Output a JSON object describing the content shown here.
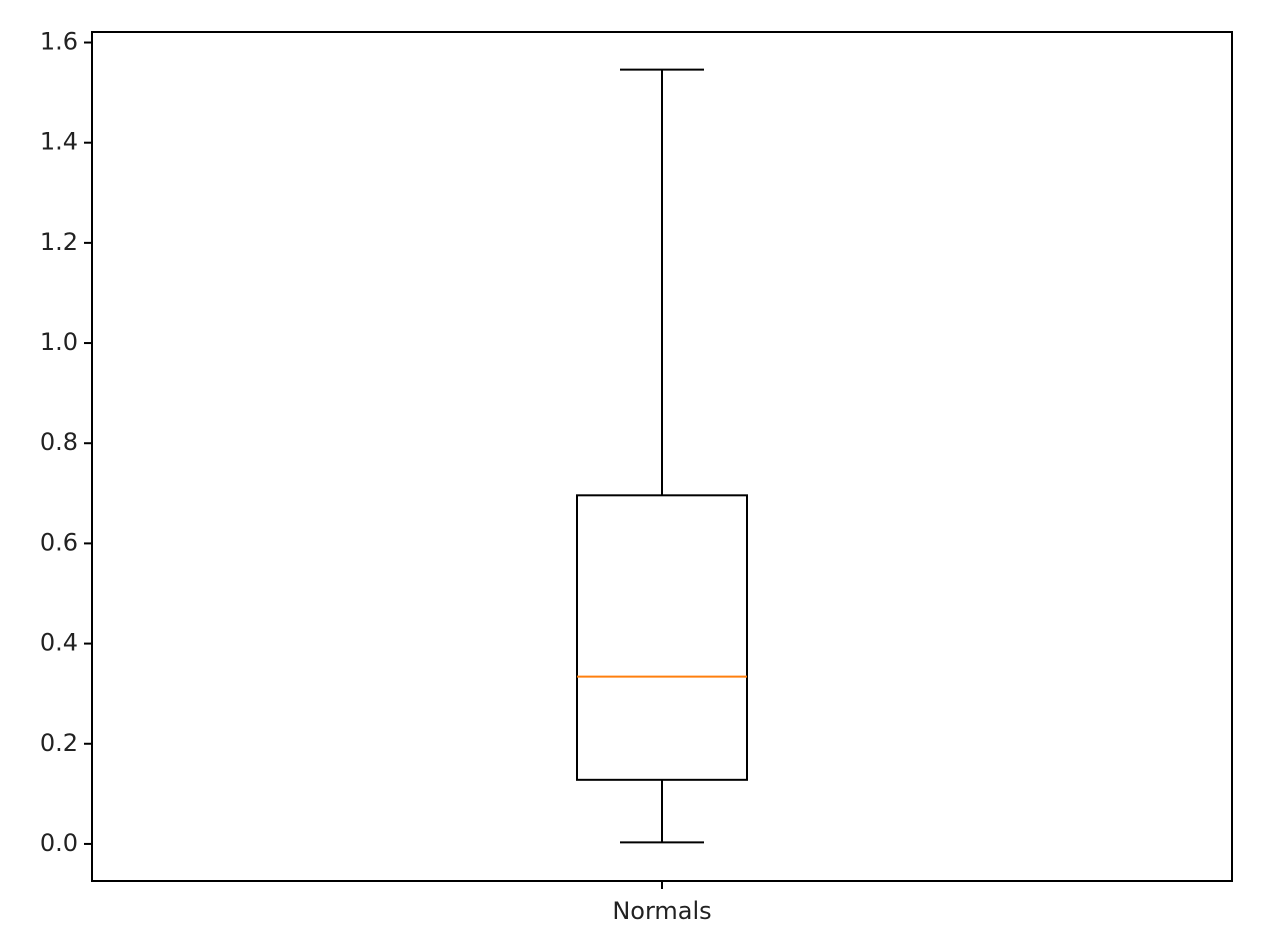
{
  "chart_data": {
    "type": "box",
    "title": "",
    "xlabel": "",
    "ylabel": "",
    "categories": [
      "Normals"
    ],
    "boxes": [
      {
        "label": "Normals",
        "whisker_low": 0.003,
        "q1": 0.128,
        "median": 0.334,
        "q3": 0.696,
        "whisker_high": 1.546
      }
    ],
    "ylim": [
      -0.074,
      1.621
    ],
    "yticks": [
      0.0,
      0.2,
      0.4,
      0.6,
      0.8,
      1.0,
      1.2,
      1.4,
      1.6
    ],
    "ytick_labels": [
      "0.0",
      "0.2",
      "0.4",
      "0.6",
      "0.8",
      "1.0",
      "1.2",
      "1.4",
      "1.6"
    ],
    "grid": false,
    "legend": "none",
    "colors": {
      "box_edge": "#000000",
      "median": "#ff7f0e",
      "axes": "#000000",
      "text": "#222222"
    }
  }
}
